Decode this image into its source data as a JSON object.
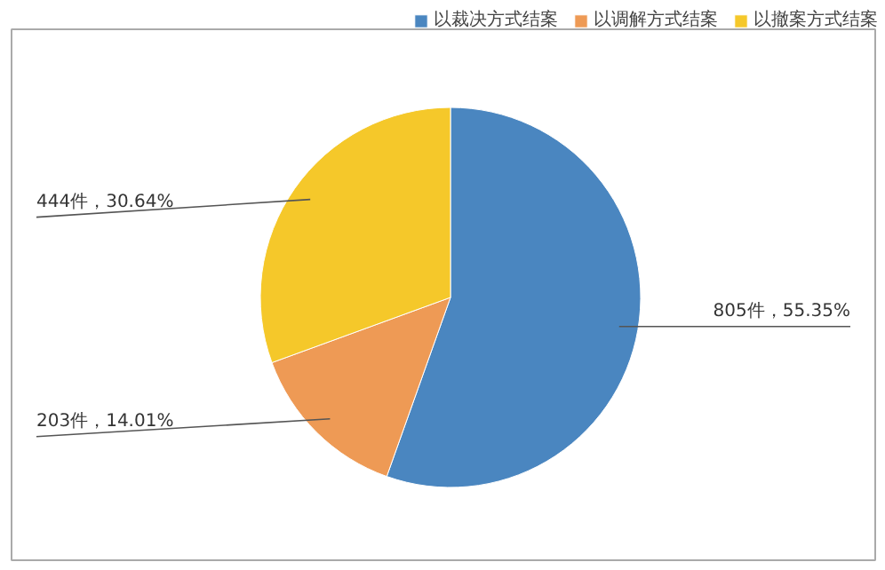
{
  "chart_data": {
    "type": "pie",
    "categories": [
      "以裁决方式结案",
      "以调解方式结案",
      "以撤案方式结案"
    ],
    "values": [
      805,
      203,
      444
    ],
    "colors": [
      "#4a86c0",
      "#ee9a55",
      "#f5c82a"
    ],
    "value_labels": [
      "805件，55.35%",
      "203件，14.01%",
      "444件，30.64%"
    ],
    "legend": "top right"
  }
}
